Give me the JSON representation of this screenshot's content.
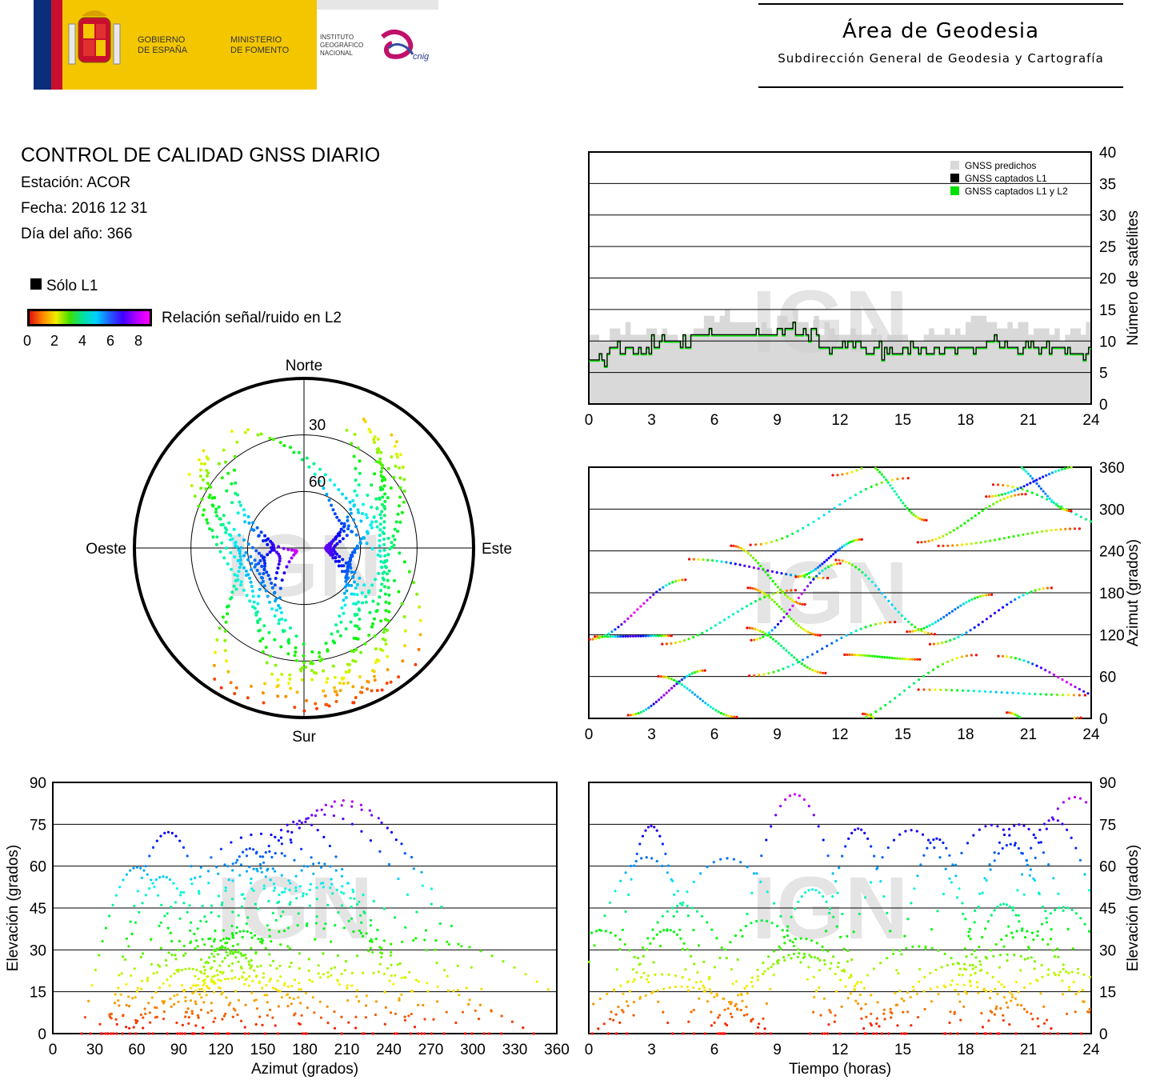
{
  "header": {
    "gov_line1": "GOBIERNO",
    "gov_line2": "DE ESPAÑA",
    "min_line1": "MINISTERIO",
    "min_line2": "DE FOMENTO",
    "ign_line1": "INSTITUTO",
    "ign_line2": "GEOGRÁFICO",
    "ign_line3": "NACIONAL",
    "cnig_logo": "cnig",
    "area_title": "Área de Geodesia",
    "area_subtitle": "Subdirección General de Geodesia y Cartografía"
  },
  "report": {
    "title": "CONTROL DE CALIDAD GNSS DIARIO",
    "station": "Estación: ACOR",
    "date": "Fecha: 2016 12 31",
    "doy": "Día del año: 366",
    "legend_l1": "Sólo L1",
    "legend_snr": "Relación señal/ruido en L2",
    "snr_ticks": [
      "0",
      "2",
      "4",
      "6",
      "8"
    ]
  },
  "colors": {
    "predicted": "#d9d9d9",
    "captured_l1": "#000000",
    "captured_l1l2": "#00e000",
    "watermark": "#cfcfcf"
  },
  "watermark": "IGN",
  "chart_data": [
    {
      "type": "area",
      "id": "satellites",
      "ylabel": "Número de satélites",
      "xlim": [
        0,
        24
      ],
      "ylim": [
        0,
        40
      ],
      "xticks": [
        0,
        3,
        6,
        9,
        12,
        15,
        18,
        21,
        24
      ],
      "yticks": [
        0,
        5,
        10,
        15,
        20,
        25,
        30,
        35,
        40
      ],
      "grid": "horizontal",
      "legend_position": "top-right",
      "legend": [
        "GNSS predichos",
        "GNSS captados L1",
        "GNSS captados L1 y L2"
      ],
      "series": [
        {
          "name": "GNSS predichos",
          "x": [
            0,
            1,
            2,
            3,
            4,
            5,
            6,
            7,
            8,
            9,
            10,
            11,
            12,
            13,
            14,
            15,
            16,
            17,
            18,
            19,
            20,
            21,
            22,
            23,
            24
          ],
          "values": [
            11,
            12,
            11,
            12,
            11,
            13,
            14,
            13,
            12,
            14,
            13,
            12,
            11,
            12,
            11,
            10,
            11,
            12,
            13,
            12,
            13,
            12,
            11,
            12,
            12
          ]
        },
        {
          "name": "GNSS captados L1 y L2",
          "x": [
            0,
            1,
            2,
            3,
            4,
            5,
            6,
            7,
            8,
            9,
            10,
            11,
            12,
            13,
            14,
            15,
            16,
            17,
            18,
            19,
            20,
            21,
            22,
            23,
            24
          ],
          "values": [
            7,
            9,
            9,
            10,
            10,
            11,
            11,
            11,
            11,
            12,
            11,
            9,
            10,
            9,
            8,
            9,
            8,
            9,
            9,
            10,
            9,
            9,
            9,
            8,
            10
          ]
        }
      ]
    },
    {
      "type": "scatter",
      "id": "polar-skyplot",
      "labels": {
        "north": "Norte",
        "south": "Sur",
        "east": "Este",
        "west": "Oeste"
      },
      "rings": [
        "30",
        "60"
      ],
      "color_scale": "snr_l2_0_to_8"
    },
    {
      "type": "scatter",
      "id": "azimuth-time",
      "ylabel": "Azimut (grados)",
      "xlim": [
        0,
        24
      ],
      "ylim": [
        0,
        360
      ],
      "xticks": [
        0,
        3,
        6,
        9,
        12,
        15,
        18,
        21,
        24
      ],
      "yticks": [
        0,
        60,
        120,
        180,
        240,
        300,
        360
      ],
      "grid": "horizontal"
    },
    {
      "type": "scatter",
      "id": "elevation-azimuth",
      "xlabel": "Azimut (grados)",
      "ylabel": "Elevación (grados)",
      "xlim": [
        0,
        360
      ],
      "ylim": [
        0,
        90
      ],
      "xticks": [
        0,
        30,
        60,
        90,
        120,
        150,
        180,
        210,
        240,
        270,
        300,
        330,
        360
      ],
      "yticks": [
        0,
        15,
        30,
        45,
        60,
        75,
        90
      ],
      "grid": "horizontal"
    },
    {
      "type": "scatter",
      "id": "elevation-time",
      "xlabel": "Tiempo (horas)",
      "ylabel": "Elevación (grados)",
      "xlim": [
        0,
        24
      ],
      "ylim": [
        0,
        90
      ],
      "xticks": [
        0,
        3,
        6,
        9,
        12,
        15,
        18,
        21,
        24
      ],
      "yticks": [
        0,
        15,
        30,
        45,
        60,
        75,
        90
      ],
      "grid": "horizontal"
    }
  ]
}
